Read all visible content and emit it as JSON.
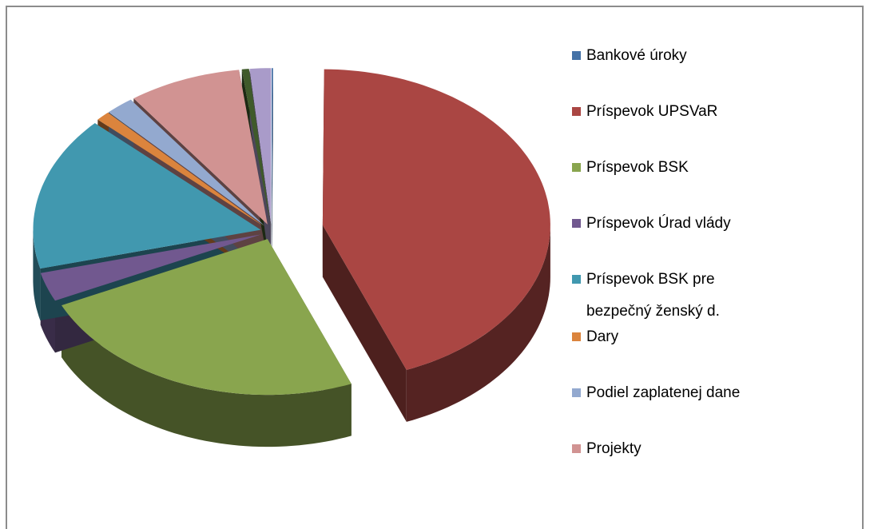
{
  "chart_data": {
    "type": "pie3d",
    "categories": [
      "Bankové úroky",
      "Príspevok UPSVaR",
      "Príspevok BSK",
      "Príspevok Úrad vlády",
      "Príspevok BSK pre bezpečný ženský d.",
      "Dary",
      "Podiel zaplatenej dane",
      "Projekty",
      null,
      null
    ],
    "values": [
      0.1,
      43.9,
      24,
      3,
      16,
      1,
      2,
      8,
      0.5,
      1.5
    ],
    "colors": [
      "#4572a7",
      "#aa4643",
      "#89a54e",
      "#71588f",
      "#4198af",
      "#db843d",
      "#93a9cf",
      "#d19392",
      "#3f5a2a",
      "#a99bc9"
    ],
    "legend": "right"
  }
}
